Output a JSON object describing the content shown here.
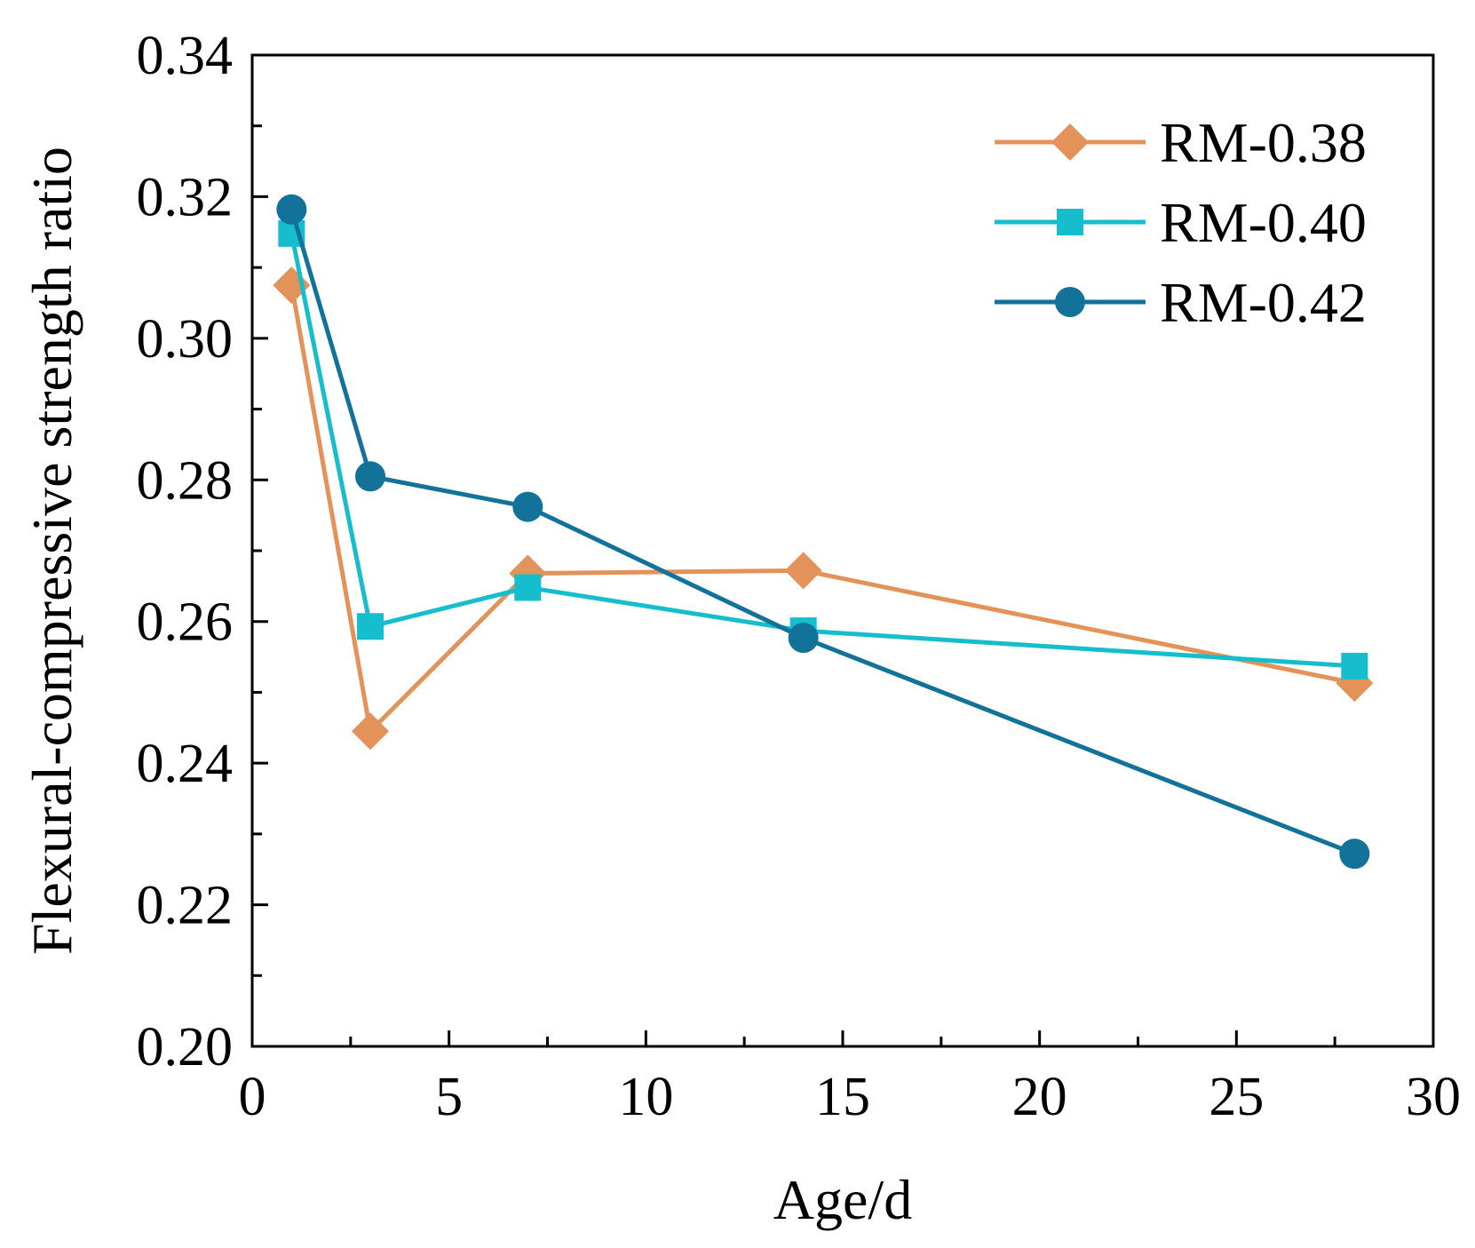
{
  "chart_data": {
    "type": "line",
    "xlabel": "Age/d",
    "ylabel": "Flexural-compressive strength ratio",
    "xlim": [
      0,
      30
    ],
    "ylim": [
      0.2,
      0.34
    ],
    "xticks": [
      0,
      5,
      10,
      15,
      20,
      25,
      30
    ],
    "xtick_labels": [
      "0",
      "5",
      "10",
      "15",
      "20",
      "25",
      "30"
    ],
    "yticks": [
      0.2,
      0.22,
      0.24,
      0.26,
      0.28,
      0.3,
      0.32,
      0.34
    ],
    "ytick_labels": [
      "0.20",
      "0.22",
      "0.24",
      "0.26",
      "0.28",
      "0.30",
      "0.32",
      "0.34"
    ],
    "x_minor_step": 2.5,
    "y_minor_step": 0.01,
    "legend_position": "top-right",
    "x": [
      1,
      3,
      7,
      14,
      28
    ],
    "series": [
      {
        "name": "RM-0.38",
        "marker": "diamond",
        "color": "#E3925A",
        "values": [
          0.3075,
          0.2445,
          0.2668,
          0.2672,
          0.2513
        ]
      },
      {
        "name": "RM-0.40",
        "marker": "square",
        "color": "#16BDCC",
        "values": [
          0.3148,
          0.2593,
          0.2648,
          0.2587,
          0.2537
        ]
      },
      {
        "name": "RM-0.42",
        "marker": "circle",
        "color": "#12729A",
        "values": [
          0.3182,
          0.2805,
          0.2762,
          0.2577,
          0.2272
        ]
      }
    ]
  }
}
